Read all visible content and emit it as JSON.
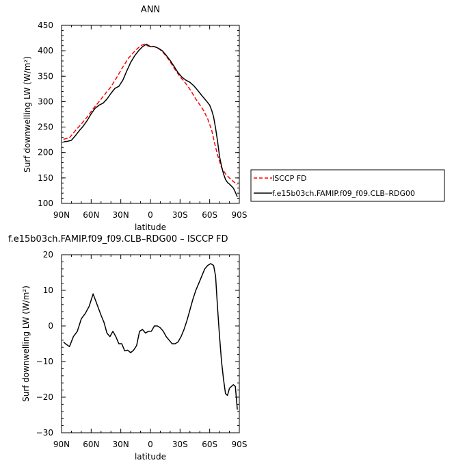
{
  "chart_data": [
    {
      "type": "line",
      "title": "ANN",
      "xlabel": "latitude",
      "ylabel": "Surf downwelling LW (W/m²)",
      "ylim": [
        100,
        450
      ],
      "xlim": [
        90,
        -90
      ],
      "x_ticks": [
        90,
        60,
        30,
        0,
        -30,
        -60,
        -90
      ],
      "x_tick_labels": [
        "90N",
        "60N",
        "30N",
        "0",
        "30S",
        "60S",
        "90S"
      ],
      "y_ticks": [
        100,
        150,
        200,
        250,
        300,
        350,
        400,
        450
      ],
      "y_tick_labels": [
        "100",
        "150",
        "200",
        "250",
        "300",
        "350",
        "400",
        "450"
      ],
      "grid": false,
      "legend_position": "right",
      "series": [
        {
          "name": "ISCCP FD",
          "color": "#ff0000",
          "style": "dashed",
          "x": [
            88,
            82,
            76,
            70,
            64,
            58,
            52,
            46,
            40,
            34,
            28,
            22,
            16,
            10,
            6,
            2,
            -2,
            -6,
            -10,
            -14,
            -18,
            -22,
            -26,
            -30,
            -34,
            -38,
            -42,
            -46,
            -50,
            -54,
            -58,
            -62,
            -65,
            -68,
            -72,
            -76,
            -80,
            -84,
            -88
          ],
          "y": [
            226,
            229,
            243,
            256,
            270,
            286,
            300,
            315,
            329,
            348,
            368,
            386,
            399,
            410,
            413,
            409,
            409,
            407,
            402,
            394,
            384,
            372,
            360,
            349,
            340,
            330,
            318,
            305,
            294,
            282,
            266,
            244,
            218,
            195,
            170,
            158,
            150,
            143,
            137
          ]
        },
        {
          "name": "f.e15b03ch.FAMIP.f09_f09.CLB–RDG00",
          "color": "#000000",
          "style": "solid",
          "x": [
            88,
            84,
            80,
            76,
            72,
            68,
            64,
            60,
            56,
            52,
            48,
            44,
            40,
            36,
            32,
            28,
            24,
            20,
            16,
            12,
            8,
            4,
            0,
            -4,
            -8,
            -12,
            -16,
            -20,
            -24,
            -28,
            -32,
            -36,
            -40,
            -44,
            -48,
            -52,
            -56,
            -60,
            -62,
            -64,
            -66,
            -68,
            -70,
            -72,
            -74,
            -76,
            -78,
            -80,
            -82,
            -84,
            -86,
            -88
          ],
          "y": [
            221,
            222,
            224,
            233,
            243,
            252,
            263,
            276,
            287,
            293,
            297,
            305,
            316,
            326,
            330,
            342,
            360,
            377,
            390,
            400,
            408,
            413,
            408,
            408,
            405,
            400,
            391,
            381,
            369,
            357,
            348,
            342,
            338,
            331,
            322,
            312,
            303,
            293,
            283,
            270,
            248,
            222,
            192,
            173,
            158,
            147,
            141,
            138,
            134,
            130,
            122,
            113
          ]
        }
      ]
    },
    {
      "type": "line",
      "title": "f.e15b03ch.FAMIP.f09_f09.CLB–RDG00 – ISCCP FD",
      "xlabel": "latitude",
      "ylabel": "Surf downwelling LW (W/m²)",
      "ylim": [
        -30,
        20
      ],
      "xlim": [
        90,
        -90
      ],
      "x_ticks": [
        90,
        60,
        30,
        0,
        -30,
        -60,
        -90
      ],
      "x_tick_labels": [
        "90N",
        "60N",
        "30N",
        "0",
        "30S",
        "60S",
        "90S"
      ],
      "y_ticks": [
        -30,
        -20,
        -10,
        0,
        10,
        20
      ],
      "y_tick_labels": [
        "−30",
        "−20",
        "−10",
        "0",
        "10",
        "20"
      ],
      "grid": false,
      "series": [
        {
          "color": "#000000",
          "style": "solid",
          "x": [
            88,
            86,
            82,
            78,
            74,
            70,
            66,
            62,
            58,
            54,
            50,
            47,
            44,
            41,
            38,
            35,
            32,
            29,
            26,
            23,
            20,
            17,
            14,
            11,
            8,
            5,
            2,
            -1,
            -4,
            -7,
            -10,
            -13,
            -16,
            -19,
            -22,
            -25,
            -28,
            -31,
            -34,
            -37,
            -40,
            -43,
            -46,
            -49,
            -52,
            -55,
            -58,
            -61,
            -64,
            -66,
            -68,
            -70,
            -72,
            -74,
            -76,
            -78,
            -80,
            -82,
            -84,
            -86,
            -88
          ],
          "y": [
            -4.5,
            -5,
            -5.8,
            -3,
            -1.5,
            2,
            3.5,
            5.5,
            9,
            6,
            3,
            1,
            -2,
            -3,
            -1.5,
            -3,
            -5,
            -5,
            -7,
            -6.8,
            -7.5,
            -6.8,
            -5.5,
            -1.5,
            -1,
            -2,
            -1.5,
            -1.5,
            0,
            0,
            -0.5,
            -1.5,
            -3,
            -4,
            -5,
            -5,
            -4.5,
            -3,
            -1,
            1.5,
            4.5,
            7.5,
            10,
            12,
            14,
            16,
            17,
            17.5,
            17,
            14,
            5,
            -3,
            -10,
            -15,
            -19,
            -19.5,
            -17.5,
            -17,
            -16.5,
            -17,
            -23.5
          ]
        }
      ]
    }
  ]
}
